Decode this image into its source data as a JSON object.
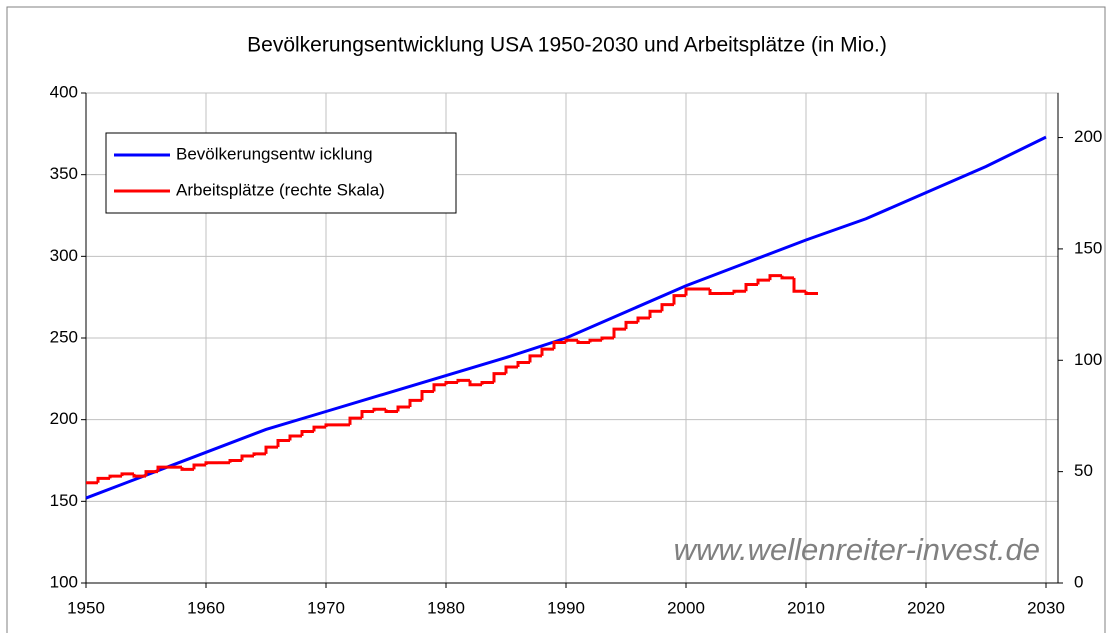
{
  "chart_data": {
    "type": "line",
    "title": "Bevölkerungsentwicklung USA 1950-2030 und Arbeitsplätze (in Mio.)",
    "watermark": "www.wellenreiter-invest.de",
    "xlim": [
      1950,
      2031
    ],
    "xticks": [
      1950,
      1960,
      1970,
      1980,
      1990,
      2000,
      2010,
      2020,
      2030
    ],
    "ylim": [
      100,
      400
    ],
    "yticks": [
      100,
      150,
      200,
      250,
      300,
      350,
      400
    ],
    "y2lim": [
      0,
      220
    ],
    "y2ticks": [
      0,
      50,
      100,
      150,
      200
    ],
    "grid": true,
    "legend": "upper left",
    "series": [
      {
        "name": "Bevölkerungsentw icklung",
        "color": "#0000ff",
        "step": false,
        "x": [
          1950,
          1955,
          1960,
          1965,
          1970,
          1975,
          1980,
          1985,
          1990,
          1995,
          2000,
          2005,
          2010,
          2015,
          2020,
          2025,
          2030
        ],
        "values": [
          152,
          166,
          180,
          194,
          205,
          216,
          227,
          238,
          250,
          266,
          282,
          296,
          310,
          323,
          339,
          355,
          373
        ]
      },
      {
        "name": "Arbeitsplätze (rechte Skala)",
        "color": "#ff0000",
        "axis": "y2",
        "step": true,
        "x": [
          1950,
          1951,
          1952,
          1953,
          1954,
          1955,
          1956,
          1957,
          1958,
          1959,
          1960,
          1961,
          1962,
          1963,
          1964,
          1965,
          1966,
          1967,
          1968,
          1969,
          1970,
          1971,
          1972,
          1973,
          1974,
          1975,
          1976,
          1977,
          1978,
          1979,
          1980,
          1981,
          1982,
          1983,
          1984,
          1985,
          1986,
          1987,
          1988,
          1989,
          1990,
          1991,
          1992,
          1993,
          1994,
          1995,
          1996,
          1997,
          1998,
          1999,
          2000,
          2001,
          2002,
          2003,
          2004,
          2005,
          2006,
          2007,
          2008,
          2009,
          2010
        ],
        "values": [
          45,
          47,
          48,
          49,
          48,
          50,
          52,
          52,
          51,
          53,
          54,
          54,
          55,
          57,
          58,
          61,
          64,
          66,
          68,
          70,
          71,
          71,
          74,
          77,
          78,
          77,
          79,
          82,
          86,
          89,
          90,
          91,
          89,
          90,
          94,
          97,
          99,
          102,
          105,
          108,
          109,
          108,
          109,
          110,
          114,
          117,
          119,
          122,
          125,
          129,
          132,
          132,
          130,
          130,
          131,
          134,
          136,
          138,
          137,
          131,
          130
        ]
      }
    ]
  }
}
